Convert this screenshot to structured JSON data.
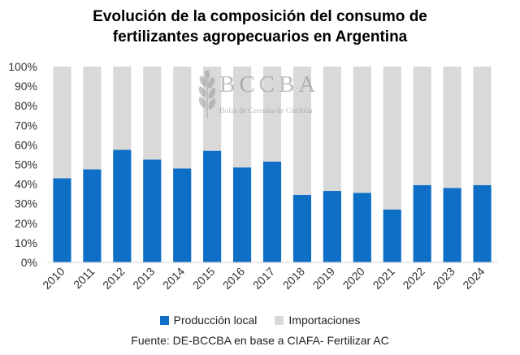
{
  "title_lines": [
    "Evolución de la composición del consumo de",
    "fertilizantes agropecuarios en Argentina"
  ],
  "watermark": {
    "name": "BCCBA",
    "subtitle": "Bolsa de Cereales de Córdoba"
  },
  "source": "Fuente: DE-BCCBA en base a CIAFA- Fertilizar AC",
  "colors": {
    "produccion_local": "#0f6fc6",
    "importaciones": "#d9d9d9",
    "axis": "#d0d0d0"
  },
  "chart_data": {
    "type": "bar",
    "stacked": true,
    "categories": [
      "2010",
      "2011",
      "2012",
      "2013",
      "2014",
      "2015",
      "2016",
      "2017",
      "2018",
      "2019",
      "2020",
      "2021",
      "2022",
      "2023",
      "2024"
    ],
    "series": [
      {
        "name": "Producción local",
        "values": [
          43,
          47.5,
          57.5,
          52.5,
          48,
          57,
          48.5,
          51.5,
          34.5,
          36.5,
          35.5,
          27,
          39.5,
          38,
          39.5
        ]
      },
      {
        "name": "Importaciones",
        "values": [
          57,
          52.5,
          42.5,
          47.5,
          52,
          43,
          51.5,
          48.5,
          65.5,
          63.5,
          64.5,
          73,
          60.5,
          62,
          60.5
        ]
      }
    ],
    "ylim": [
      0,
      100
    ],
    "y_ticks": [
      "0%",
      "10%",
      "20%",
      "30%",
      "40%",
      "50%",
      "60%",
      "70%",
      "80%",
      "90%",
      "100%"
    ],
    "xlabel": "",
    "ylabel": "",
    "grid": false,
    "legend_position": "bottom"
  }
}
